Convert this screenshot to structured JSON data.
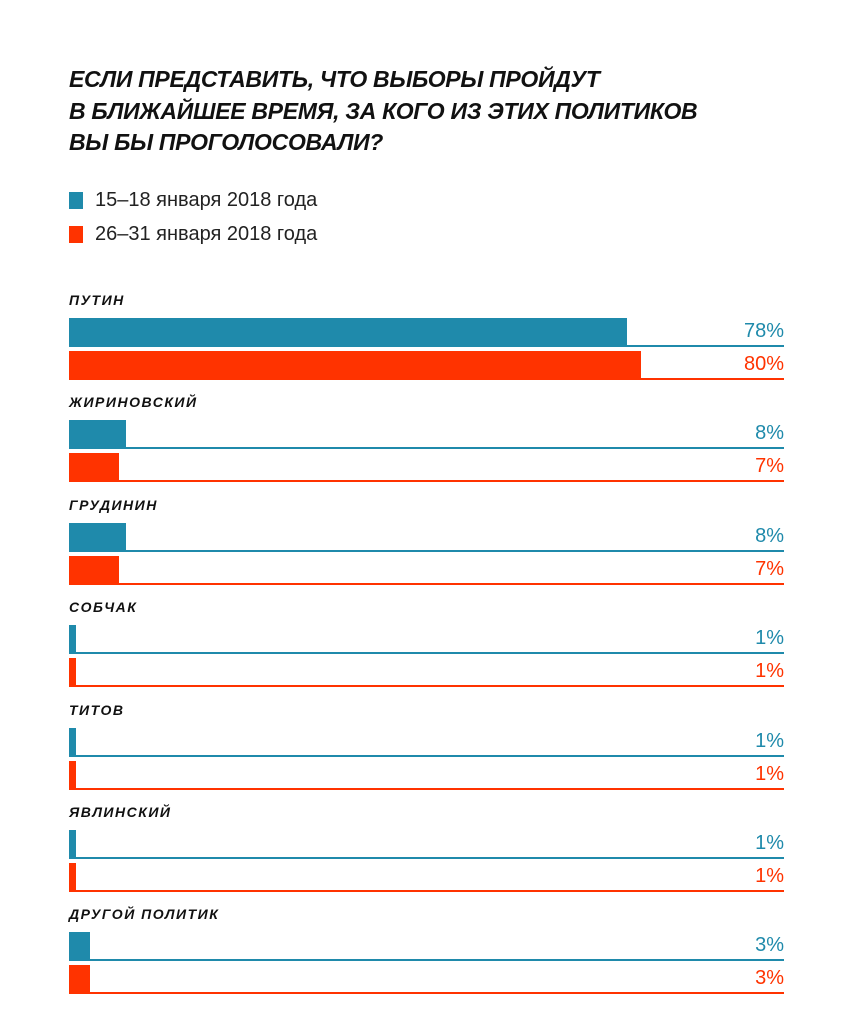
{
  "chart_data": {
    "type": "bar",
    "orientation": "horizontal",
    "title_lines": [
      "ЕСЛИ ПРЕДСТАВИТЬ, ЧТО ВЫБОРЫ ПРОЙДУТ",
      "В БЛИЖАЙШЕЕ ВРЕМЯ, ЗА КОГО ИЗ ЭТИХ ПОЛИТИКОВ",
      "ВЫ БЫ ПРОГОЛОСОВАЛИ?"
    ],
    "categories": [
      "ПУТИН",
      "ЖИРИНОВСКИЙ",
      "ГРУДИНИН",
      "СОБЧАК",
      "ТИТОВ",
      "ЯВЛИНСКИЙ",
      "ДРУГОЙ ПОЛИТИК"
    ],
    "series": [
      {
        "name": "15–18 января 2018 года",
        "color": "#1f8aab",
        "values": [
          78,
          8,
          8,
          1,
          1,
          1,
          3
        ]
      },
      {
        "name": "26–31 января 2018 года",
        "color": "#ff3300",
        "values": [
          80,
          7,
          7,
          1,
          1,
          1,
          3
        ]
      }
    ],
    "unit": "%",
    "xlim": [
      0,
      100
    ],
    "legend_position": "top-left",
    "grid": false
  }
}
